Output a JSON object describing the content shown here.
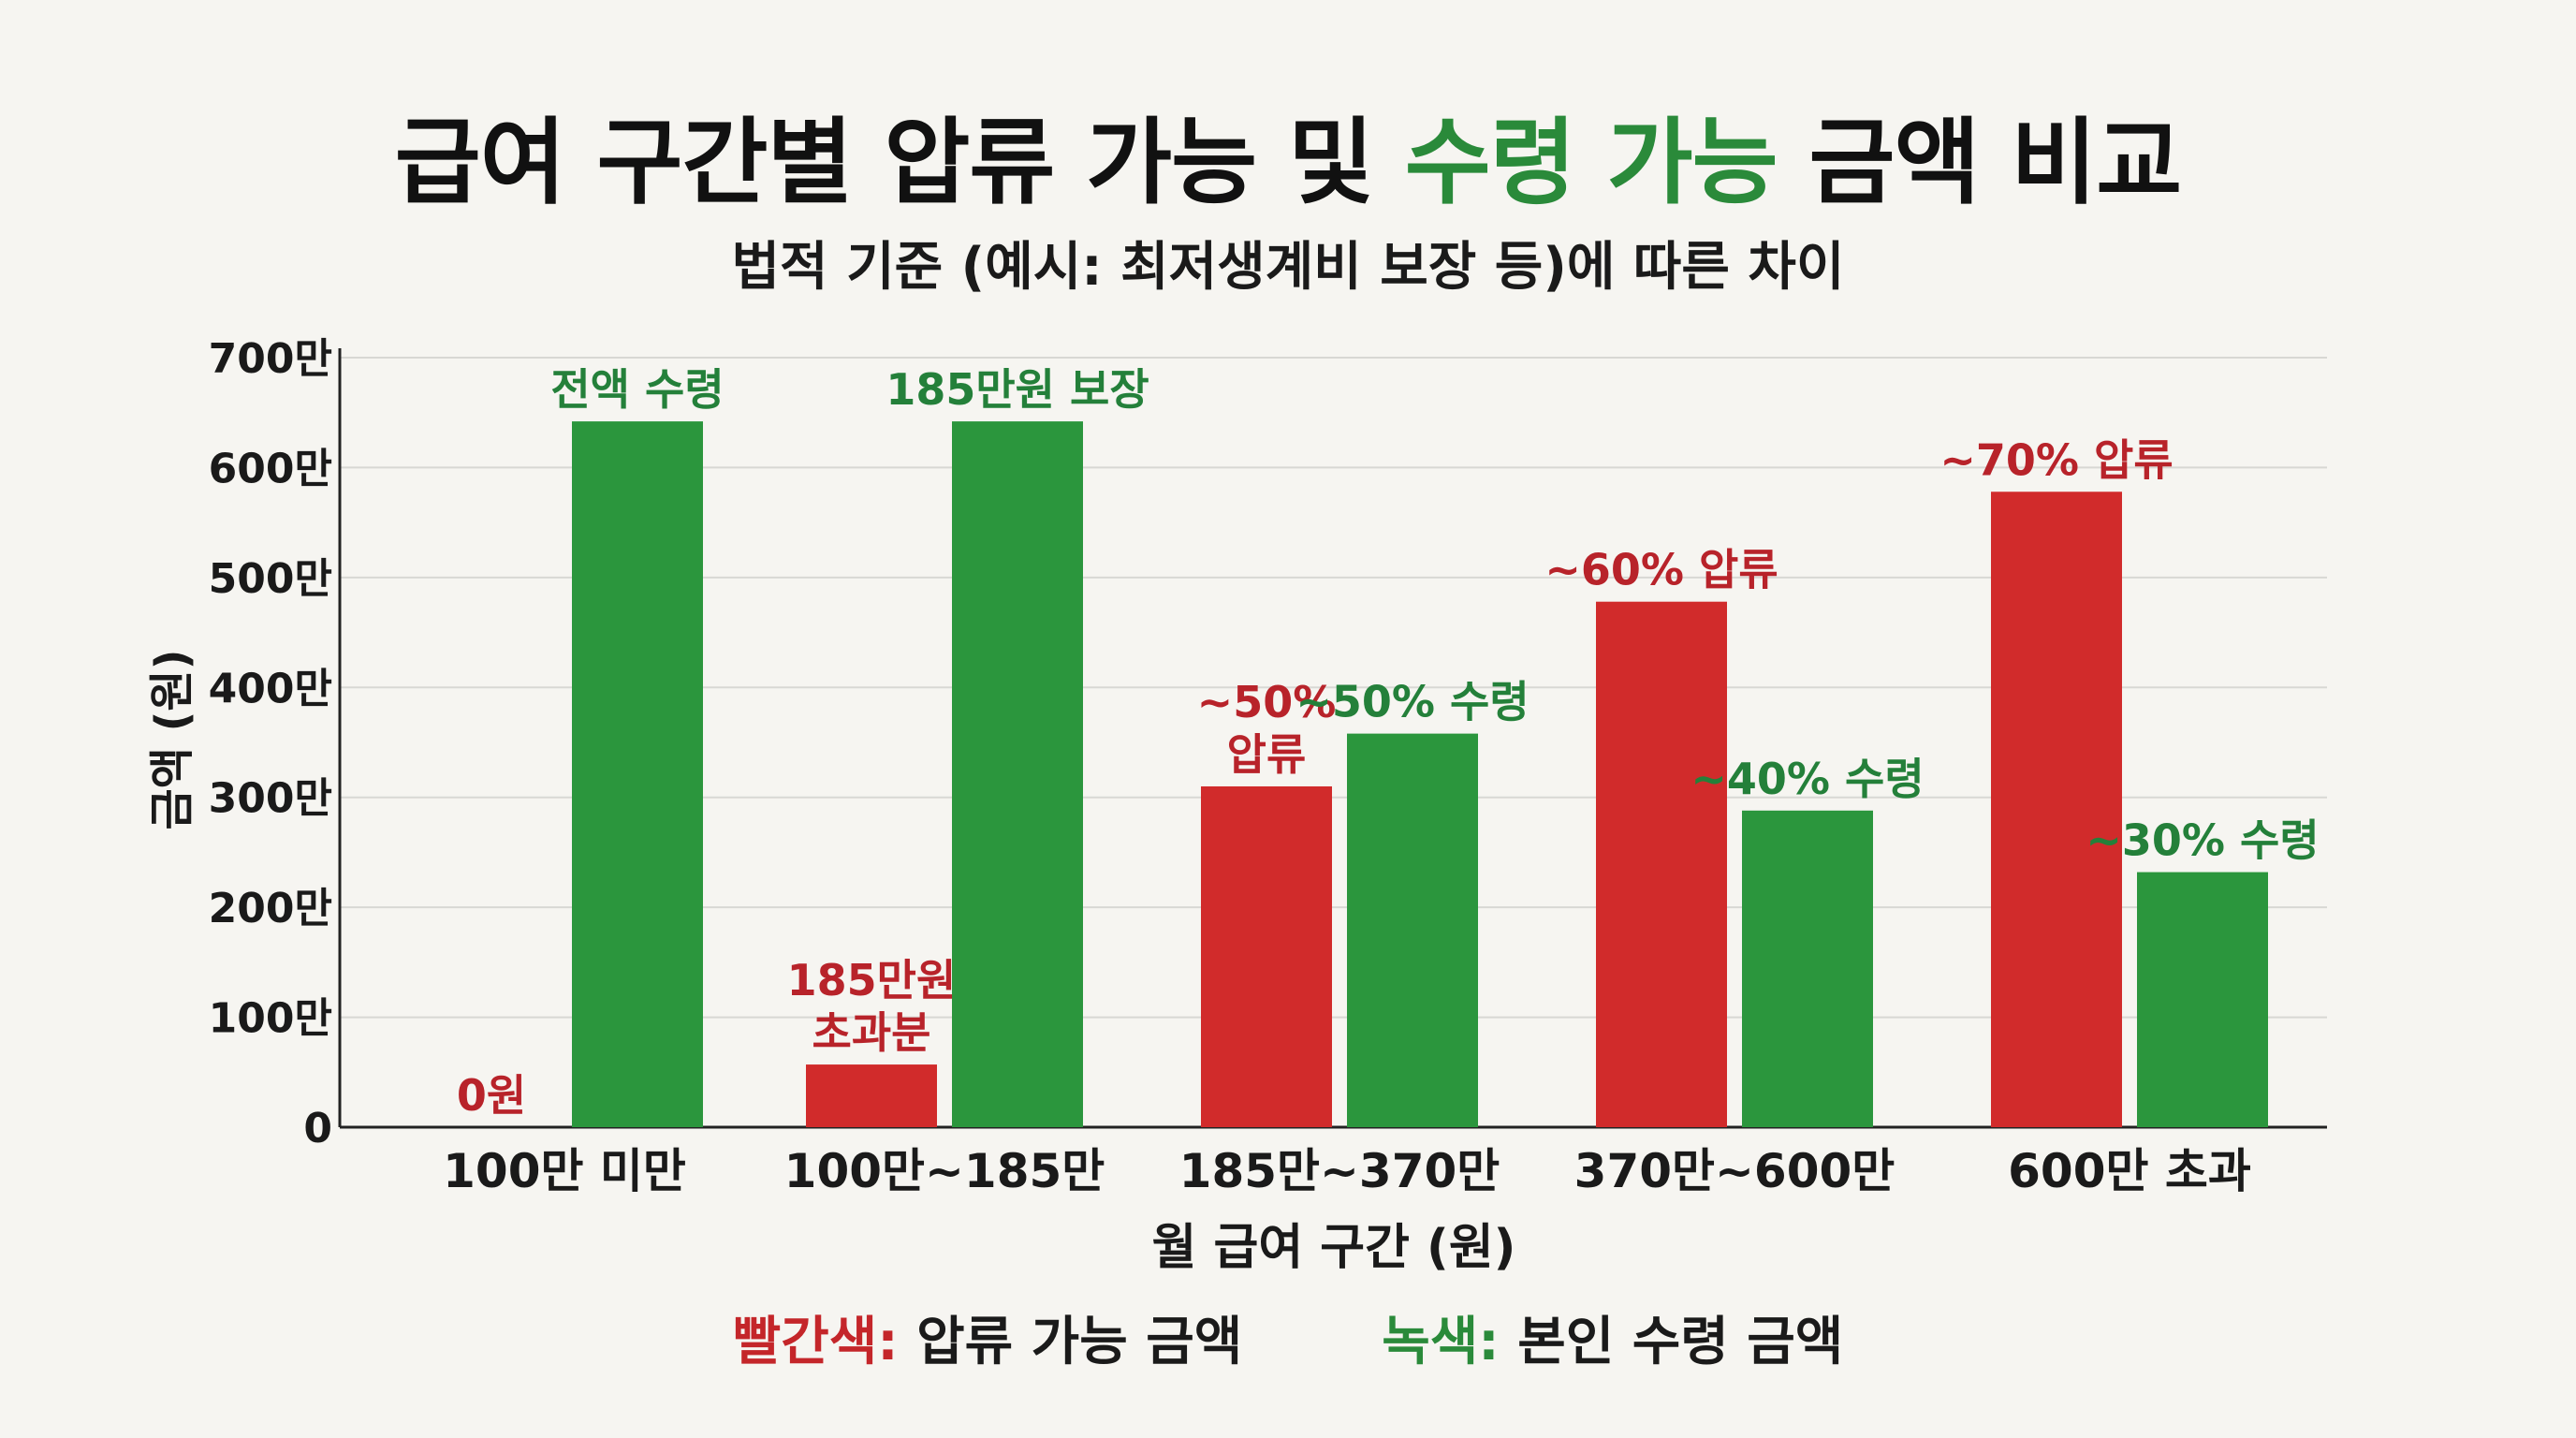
{
  "title": {
    "part1": "급여 구간별 압류 가능 및 ",
    "highlight": "수령 가능",
    "part2": " 금액 비교"
  },
  "subtitle": "법적 기준 (예시: 최저생계비 보장 등)에 따른 차이",
  "legend": {
    "red_key": "빨간색:",
    "red_text": "압류 가능 금액",
    "green_key": "녹색:",
    "green_text": "본인 수령 금액"
  },
  "colors": {
    "red": "#d12b2b",
    "green": "#2b963d",
    "red_label": "#b8232a",
    "green_label": "#24803a"
  },
  "chart_data": {
    "type": "bar",
    "categories": [
      "100만 미만",
      "100만~185만",
      "185만~370만",
      "370만~600만",
      "600만 초과"
    ],
    "series": [
      {
        "name": "압류 가능 금액",
        "color": "red",
        "values": [
          0,
          57,
          310,
          478,
          578
        ]
      },
      {
        "name": "본인 수령 금액",
        "color": "green",
        "values": [
          642,
          642,
          358,
          288,
          232
        ]
      }
    ],
    "data_labels": {
      "red": [
        [
          "0원"
        ],
        [
          "185만원",
          "초과분"
        ],
        [
          "~50%",
          "압류"
        ],
        [
          "~60% 압류"
        ],
        [
          "~70% 압류"
        ]
      ],
      "green": [
        [
          "전액 수령"
        ],
        [
          "185만원 보장"
        ],
        [
          "~50% 수령"
        ],
        [
          "~40% 수령"
        ],
        [
          "~30% 수령"
        ]
      ]
    },
    "y_ticks": [
      {
        "value": 0,
        "label": "0"
      },
      {
        "value": 100,
        "label": "100만"
      },
      {
        "value": 200,
        "label": "200만"
      },
      {
        "value": 300,
        "label": "300만"
      },
      {
        "value": 400,
        "label": "400만"
      },
      {
        "value": 500,
        "label": "500만"
      },
      {
        "value": 600,
        "label": "600만"
      },
      {
        "value": 700,
        "label": "700만"
      }
    ],
    "ylim": [
      0,
      700
    ],
    "xlabel": "월 급여 구간 (원)",
    "ylabel": "금액 (원)",
    "grid": true
  }
}
